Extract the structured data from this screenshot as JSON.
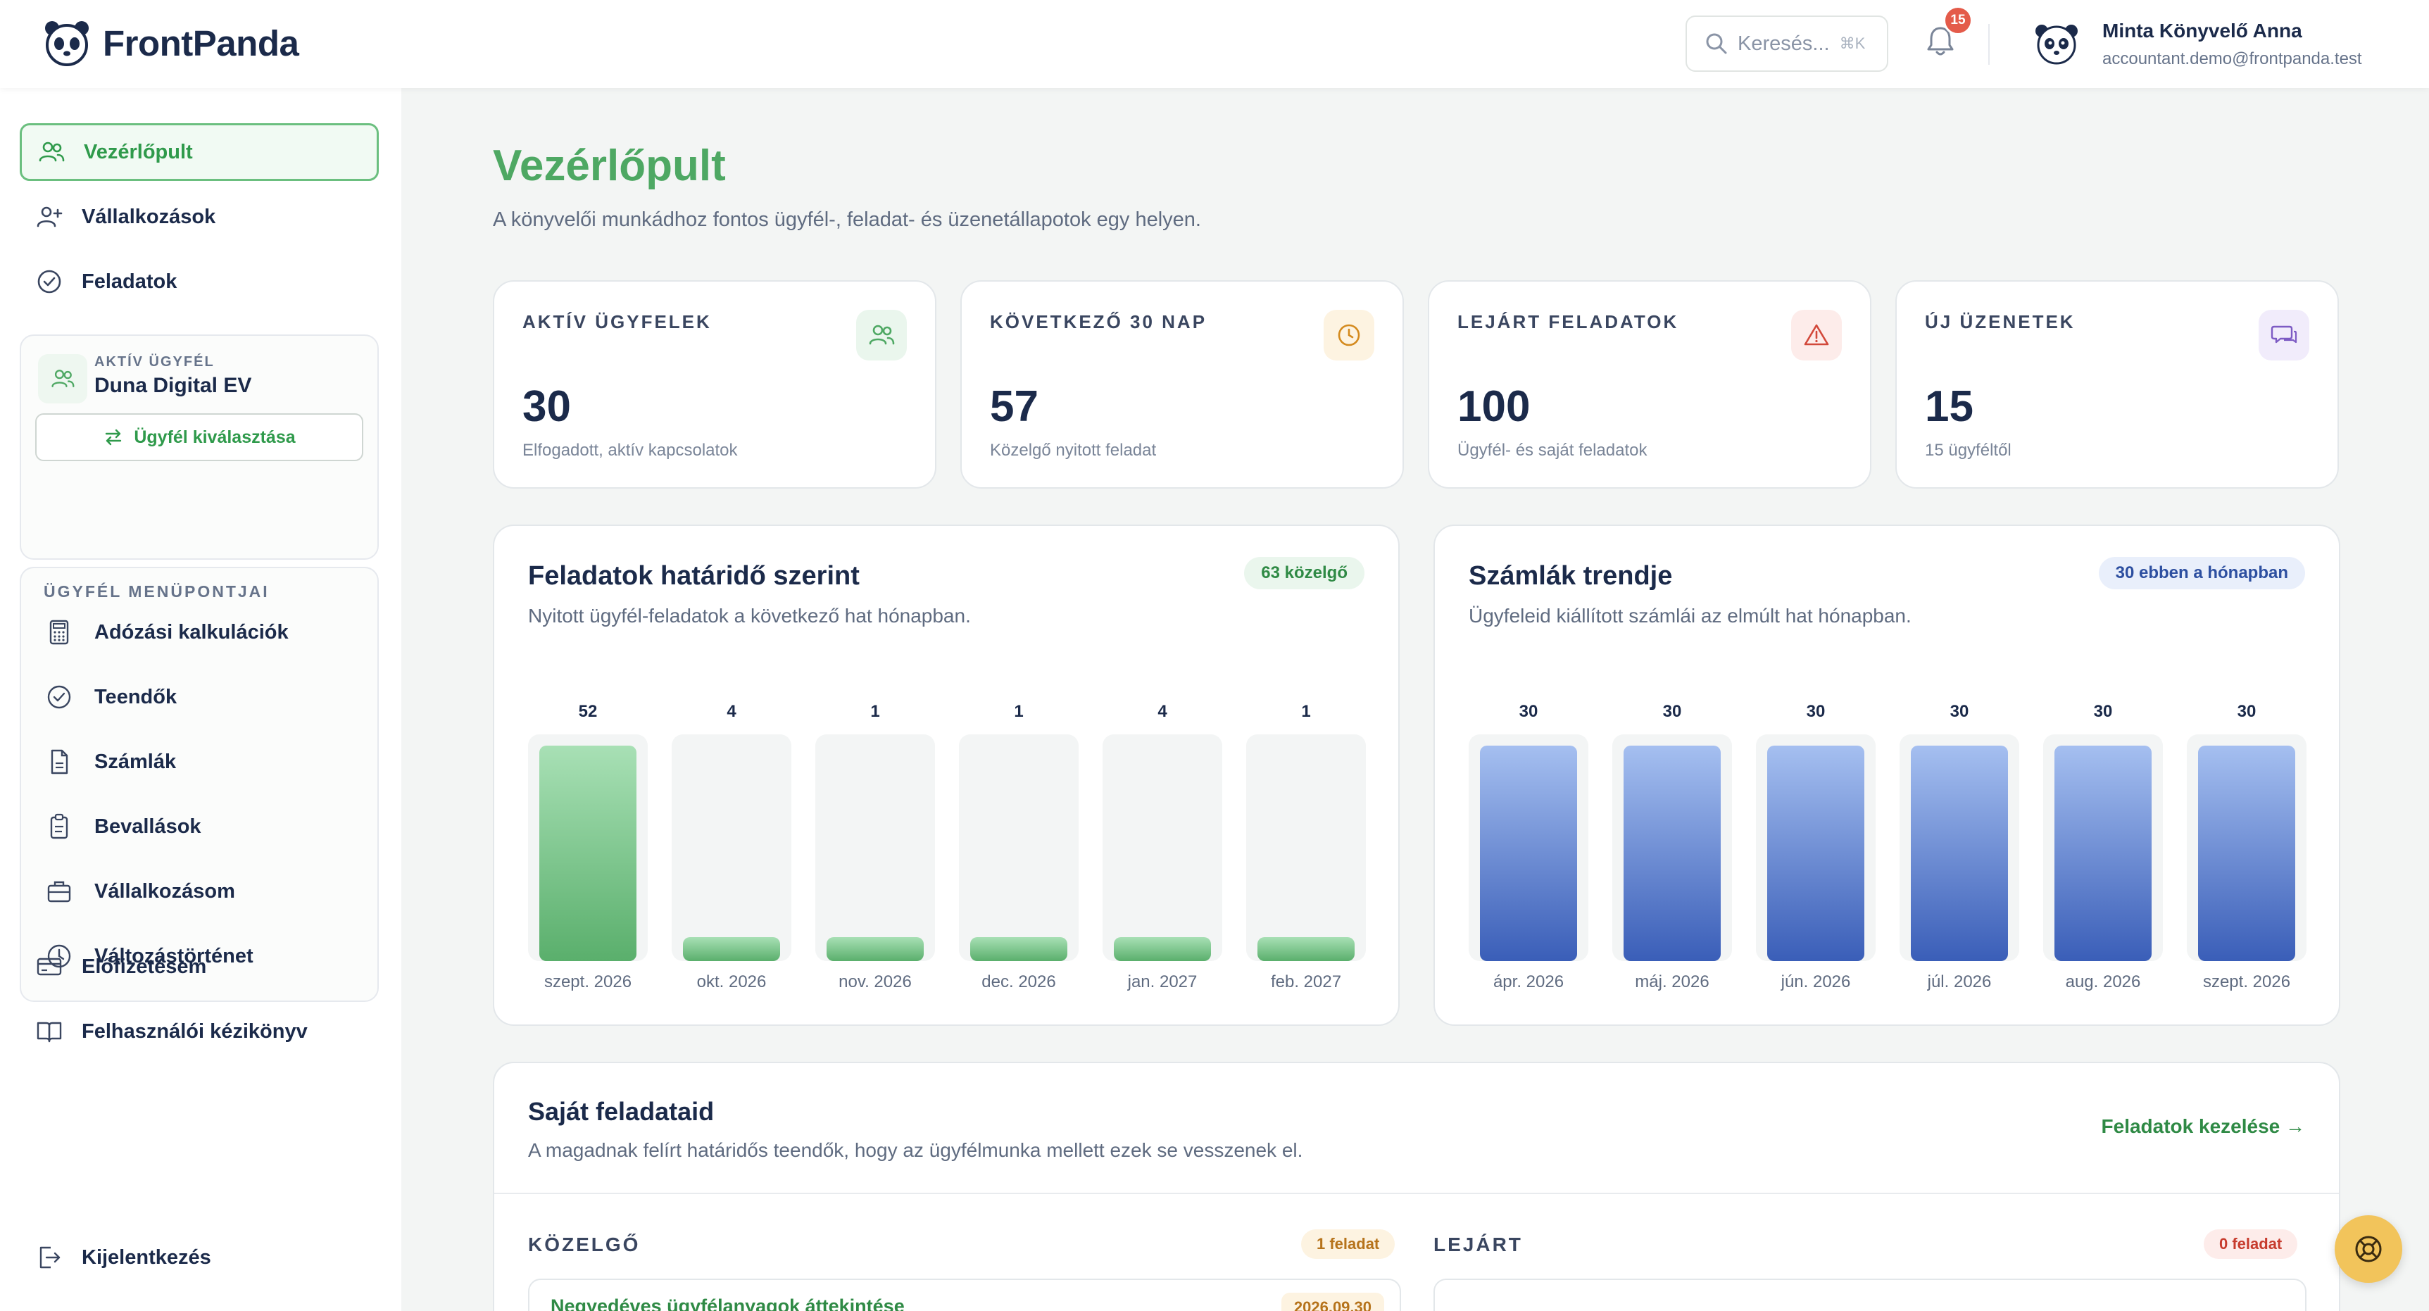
{
  "brand": {
    "name": "FrontPanda"
  },
  "header": {
    "search_placeholder": "Keresés...",
    "search_shortcut": "⌘K",
    "notifications_count": "15",
    "user_name": "Minta Könyvelő Anna",
    "user_email": "accountant.demo@frontpanda.test"
  },
  "sidebar": {
    "items": [
      {
        "label": "Vezérlőpult",
        "icon": "users-icon",
        "active": true
      },
      {
        "label": "Vállalkozások",
        "icon": "user-plus-icon"
      },
      {
        "label": "Feladatok",
        "icon": "check-circle-icon"
      }
    ],
    "active_client": {
      "label": "AKTÍV ÜGYFÉL",
      "name": "Duna Digital EV",
      "select_button": "Ügyfél kiválasztása"
    },
    "client_menu": {
      "title": "ÜGYFÉL MENÜPONTJAI",
      "items": [
        {
          "label": "Adózási kalkulációk",
          "icon": "calculator-icon"
        },
        {
          "label": "Teendők",
          "icon": "check-circle-icon"
        },
        {
          "label": "Számlák",
          "icon": "document-icon"
        },
        {
          "label": "Bevallások",
          "icon": "clipboard-icon"
        },
        {
          "label": "Vállalkozásom",
          "icon": "briefcase-icon"
        },
        {
          "label": "Változástörténet",
          "icon": "clock-icon"
        }
      ]
    },
    "bottom_items": [
      {
        "label": "Előfizetésem",
        "icon": "credit-card-icon"
      },
      {
        "label": "Felhasználói kézikönyv",
        "icon": "book-icon"
      }
    ],
    "logout": "Kijelentkezés"
  },
  "main": {
    "title": "Vezérlőpult",
    "subtitle": "A könyvelői munkádhoz fontos ügyfél-, feladat- és üzenetállapotok egy helyen.",
    "stats": [
      {
        "label": "AKTÍV ÜGYFELEK",
        "value": "30",
        "desc": "Elfogadott, aktív kapcsolatok",
        "icon": "users-icon",
        "color": "#4ea863",
        "bg": "#eaf6ed"
      },
      {
        "label": "KÖVETKEZŐ 30 NAP",
        "value": "57",
        "desc": "Közelgő nyitott feladat",
        "icon": "clock-icon",
        "color": "#d48a1e",
        "bg": "#fdf3e1"
      },
      {
        "label": "LEJÁRT FELADATOK",
        "value": "100",
        "desc": "Ügyfél- és saját feladatok",
        "icon": "warning-icon",
        "color": "#d2483a",
        "bg": "#fdecea"
      },
      {
        "label": "ÚJ ÜZENETEK",
        "value": "15",
        "desc": "15 ügyféltől",
        "icon": "chat-icon",
        "color": "#7d5bc4",
        "bg": "#f1ecfb"
      }
    ],
    "tasks_chart": {
      "title": "Feladatok határidő szerint",
      "subtitle": "Nyitott ügyfél-feladatok a következő hat hónapban.",
      "badge": "63 közelgő"
    },
    "invoices_chart": {
      "title": "Számlák trendje",
      "subtitle": "Ügyfeleid kiállított számlái az elmúlt hat hónapban.",
      "badge": "30 ebben a hónapban"
    },
    "own_tasks": {
      "title": "Saját feladataid",
      "subtitle": "A magadnak felírt határidős teendők, hogy az ügyfélmunka mellett ezek se vesszenek el.",
      "link": "Feladatok kezelése →",
      "upcoming_title": "KÖZELGŐ",
      "upcoming_badge": "1 feladat",
      "overdue_title": "LEJÁRT",
      "overdue_badge": "0 feladat",
      "upcoming_items": [
        {
          "name": "Negyedéves ügyfélanyagok áttekintése",
          "date": "2026.09.30"
        }
      ]
    }
  },
  "chart_data": [
    {
      "type": "bar",
      "title": "Feladatok határidő szerint",
      "categories": [
        "szept. 2026",
        "okt. 2026",
        "nov. 2026",
        "dec. 2026",
        "jan. 2027",
        "feb. 2027"
      ],
      "values": [
        52,
        4,
        1,
        1,
        4,
        1
      ],
      "ylim": [
        0,
        52
      ],
      "color": "#5aaf6c"
    },
    {
      "type": "bar",
      "title": "Számlák trendje",
      "categories": [
        "ápr. 2026",
        "máj. 2026",
        "jún. 2026",
        "júl. 2026",
        "aug. 2026",
        "szept. 2026"
      ],
      "values": [
        30,
        30,
        30,
        30,
        30,
        30
      ],
      "ylim": [
        0,
        30
      ],
      "color": "#3a5eb8"
    }
  ]
}
